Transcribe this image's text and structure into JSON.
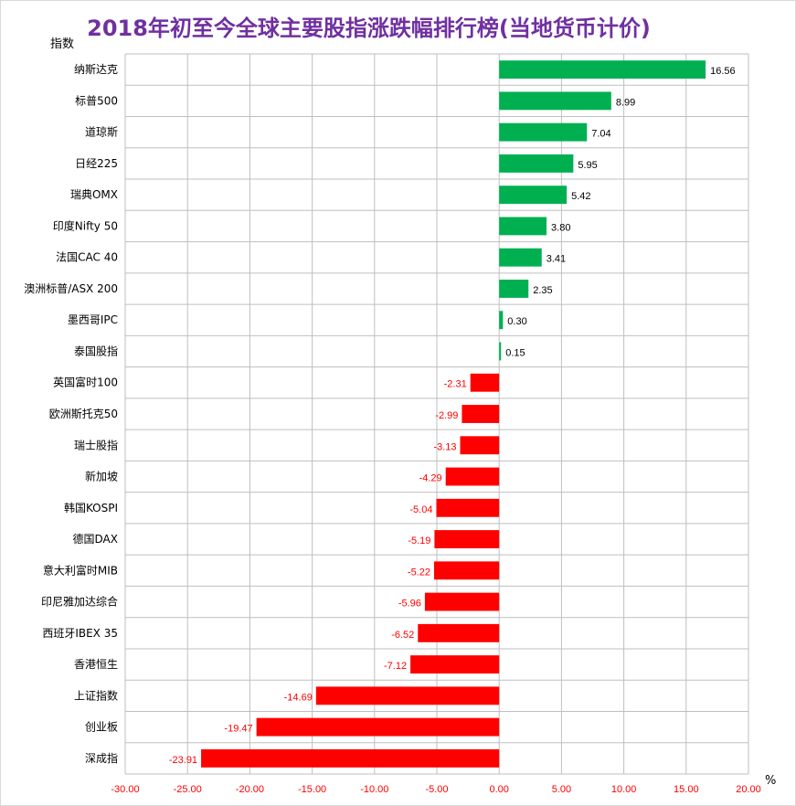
{
  "chart_data": {
    "type": "bar",
    "orientation": "horizontal",
    "title": "2018年初至今全球主要股指涨跌幅排行榜(当地货币计价)",
    "ylabel": "指数",
    "xlabel": "%",
    "xlim": [
      -30,
      20
    ],
    "x_ticks": [
      "-30.00",
      "-25.00",
      "-20.00",
      "-15.00",
      "-10.00",
      "-5.00",
      "0.00",
      "5.00",
      "10.00",
      "15.00",
      "20.00"
    ],
    "grid": true,
    "legend": "none",
    "positive_color": "#00b050",
    "negative_color": "#ff0000",
    "positive_label_color": "#000000",
    "negative_label_color": "#ff0000",
    "tick_label_color": "#ff0000",
    "title_color": "#7030a0",
    "categories": [
      "纳斯达克",
      "标普500",
      "道琼斯",
      "日经225",
      "瑞典OMX",
      "印度Nifty 50",
      "法国CAC 40",
      "澳洲标普/ASX 200",
      "墨西哥IPC",
      "泰国股指",
      "英国富时100",
      "欧洲斯托克50",
      "瑞士股指",
      "新加坡",
      "韩国KOSPI",
      "德国DAX",
      "意大利富时MIB",
      "印尼雅加达综合",
      "西班牙IBEX 35",
      "香港恒生",
      "上证指数",
      "创业板",
      "深成指"
    ],
    "values": [
      16.56,
      8.99,
      7.04,
      5.95,
      5.42,
      3.8,
      3.41,
      2.35,
      0.3,
      0.15,
      -2.31,
      -2.99,
      -3.13,
      -4.29,
      -5.04,
      -5.19,
      -5.22,
      -5.96,
      -6.52,
      -7.12,
      -14.69,
      -19.47,
      -23.91
    ],
    "value_labels": [
      "16.56",
      "8.99",
      "7.04",
      "5.95",
      "5.42",
      "3.80",
      "3.41",
      "2.35",
      "0.30",
      "0.15",
      "-2.31",
      "-2.99",
      "-3.13",
      "-4.29",
      "-5.04",
      "-5.19",
      "-5.22",
      "-5.96",
      "-6.52",
      "-7.12",
      "-14.69",
      "-19.47",
      "-23.91"
    ]
  }
}
